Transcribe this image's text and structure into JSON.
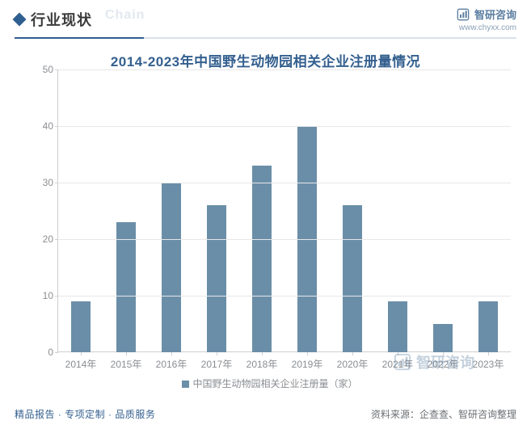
{
  "header": {
    "heading": "行业现状",
    "ghost": "Chain",
    "brand_name": "智研咨询",
    "brand_url": "www.chyxx.com"
  },
  "chart": {
    "type": "bar",
    "title": "2014-2023年中国野生动物园相关企业注册量情况",
    "categories": [
      "2014年",
      "2015年",
      "2016年",
      "2017年",
      "2018年",
      "2019年",
      "2020年",
      "2021年",
      "2022年",
      "2023年"
    ],
    "values": [
      9,
      23,
      30,
      26,
      33,
      40,
      26,
      9,
      5,
      9
    ],
    "bar_color": "#6a8ea8",
    "ylim": [
      0,
      50
    ],
    "ytick_step": 10,
    "grid_color": "#e7e7e7",
    "axis_color": "#cfcfcf",
    "tick_label_color": "#8b8e92",
    "tick_fontsize": 12,
    "title_fontsize": 17,
    "title_color": "#34608f",
    "background_color": "#ffffff",
    "bar_width_ratio": 0.42,
    "legend_label": "中国野生动物园相关企业注册量（家）"
  },
  "watermark": {
    "text": "智研咨询"
  },
  "footer": {
    "left": "精品报告 · 专项定制 · 品质服务",
    "right": "资料来源：企查查、智研咨询整理"
  }
}
